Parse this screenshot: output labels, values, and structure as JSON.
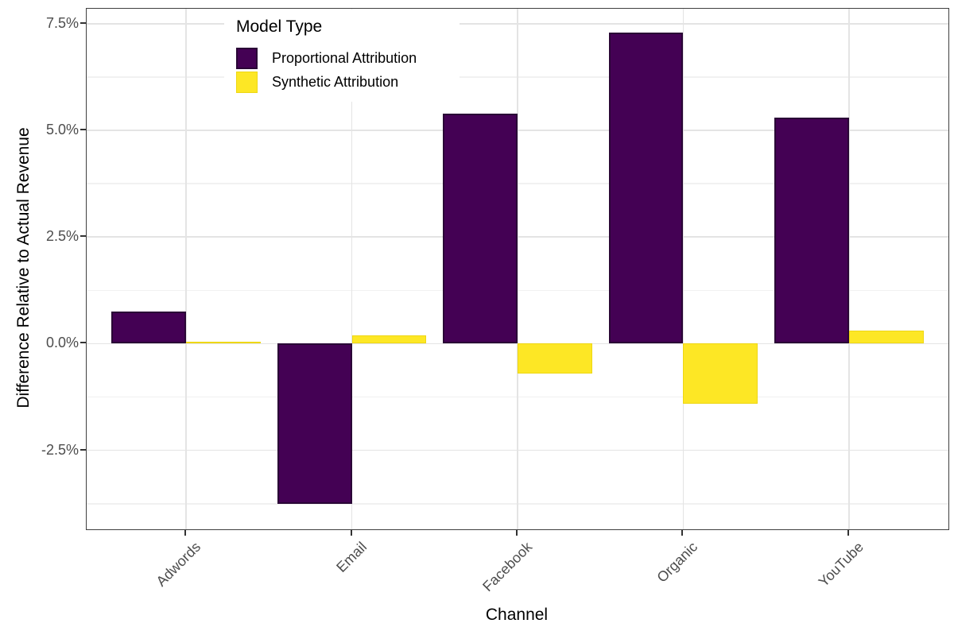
{
  "chart_data": {
    "type": "bar",
    "orientation": "vertical",
    "title": "",
    "xlabel": "Channel",
    "ylabel": "Difference Relative to Actual Revenue",
    "unit": "%",
    "categories": [
      "Adwords",
      "Email",
      "Facebook",
      "Organic",
      "YouTube"
    ],
    "series": [
      {
        "name": "Proportional Attribution",
        "color": "#440154",
        "border_color": "#2a0636",
        "border_px": 2,
        "values_pct": [
          0.75,
          -3.75,
          5.4,
          7.3,
          5.3
        ]
      },
      {
        "name": "Synthetic Attribution",
        "color": "#FDE725",
        "border_color": "#eed714",
        "border_px": 1,
        "values_pct": [
          0.05,
          0.2,
          -0.7,
          -1.4,
          0.3
        ]
      }
    ],
    "ylim": [
      -4.35,
      7.85
    ],
    "y_ticks": [
      {
        "label": "7.5%",
        "value": 7.5
      },
      {
        "label": "5.0%",
        "value": 5.0
      },
      {
        "label": "2.5%",
        "value": 2.5
      },
      {
        "label": "0.0%",
        "value": 0.0
      },
      {
        "label": "-2.5%",
        "value": -2.5
      }
    ],
    "y_minor_gridlines": [
      6.25,
      3.75,
      1.25,
      -1.25,
      -3.75
    ],
    "grid": true,
    "legend": {
      "title": "Model Type",
      "position": "inside-top-left"
    },
    "colors": {
      "panel_border": "#3f3f3f",
      "major_grid": "#e4e4e4",
      "minor_grid": "#f1f1f1",
      "tick_mark": "#333333",
      "tick_label": "#4d4d4d",
      "axis_title": "#000000",
      "background": "#ffffff"
    }
  }
}
